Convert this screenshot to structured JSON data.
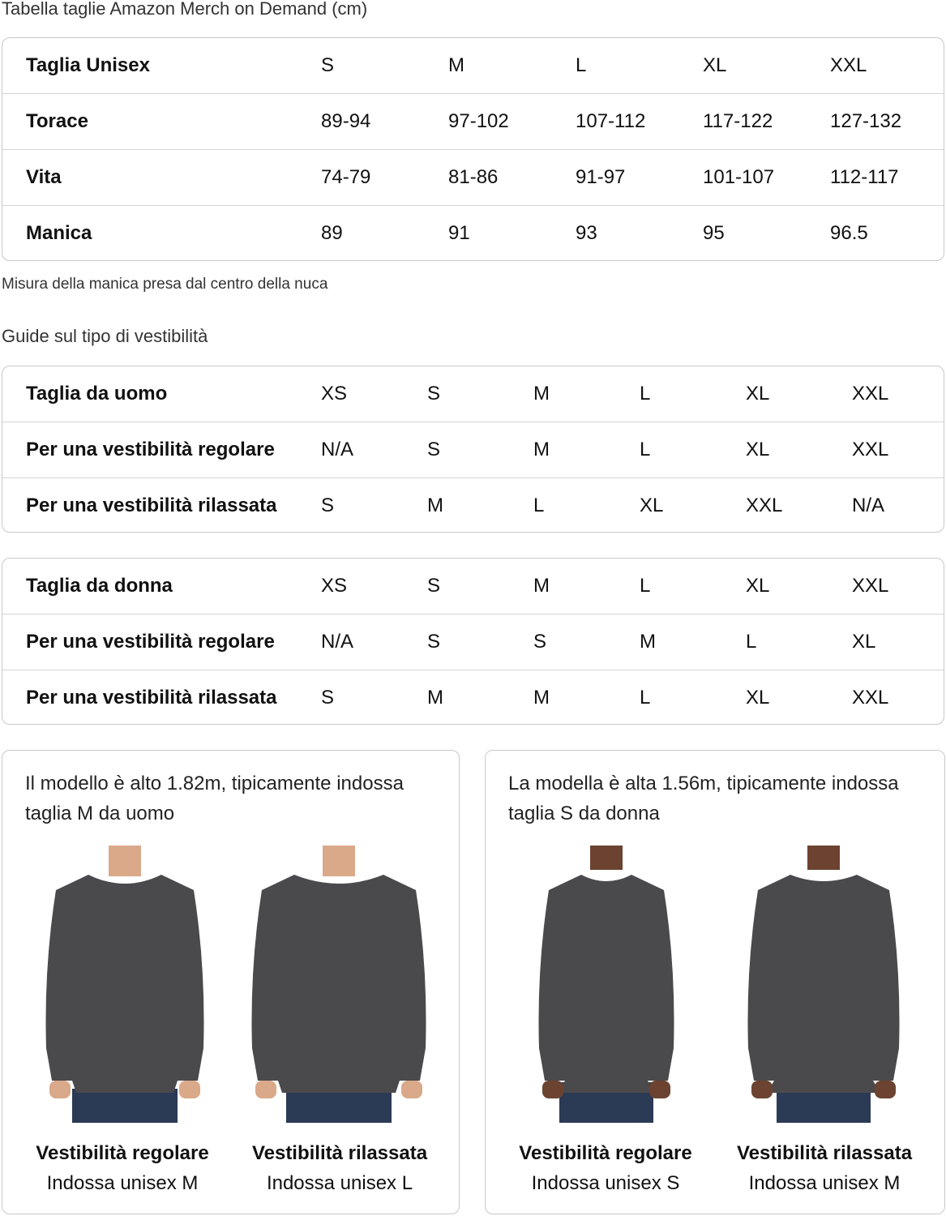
{
  "title": "Tabella taglie Amazon Merch on Demand (cm)",
  "unisex_table": {
    "rows": [
      {
        "label": "Taglia Unisex",
        "values": [
          "S",
          "M",
          "L",
          "XL",
          "XXL"
        ]
      },
      {
        "label": "Torace",
        "values": [
          "89-94",
          "97-102",
          "107-112",
          "117-122",
          "127-132"
        ]
      },
      {
        "label": "Vita",
        "values": [
          "74-79",
          "81-86",
          "91-97",
          "101-107",
          "112-117"
        ]
      },
      {
        "label": "Manica",
        "values": [
          "89",
          "91",
          "93",
          "95",
          "96.5"
        ]
      }
    ]
  },
  "note": "Misura della manica presa dal centro della nuca",
  "guide_title": "Guide sul tipo di vestibilità",
  "men_table": {
    "rows": [
      {
        "label": "Taglia da uomo",
        "values": [
          "XS",
          "S",
          "M",
          "L",
          "XL",
          "XXL"
        ]
      },
      {
        "label": "Per una vestibilità regolare",
        "values": [
          "N/A",
          "S",
          "M",
          "L",
          "XL",
          "XXL"
        ]
      },
      {
        "label": "Per una vestibilità rilassata",
        "values": [
          "S",
          "M",
          "L",
          "XL",
          "XXL",
          "N/A"
        ]
      }
    ]
  },
  "women_table": {
    "rows": [
      {
        "label": "Taglia da donna",
        "values": [
          "XS",
          "S",
          "M",
          "L",
          "XL",
          "XXL"
        ]
      },
      {
        "label": "Per una vestibilità regolare",
        "values": [
          "N/A",
          "S",
          "S",
          "M",
          "L",
          "XL"
        ]
      },
      {
        "label": "Per una vestibilità rilassata",
        "values": [
          "S",
          "M",
          "M",
          "L",
          "XL",
          "XXL"
        ]
      }
    ]
  },
  "cards": [
    {
      "text": "Il modello è alto 1.82m, tipicamente indossa taglia M da uomo",
      "photos": [
        {
          "fit": "Vestibilità regolare",
          "wears": "Indossa unisex M"
        },
        {
          "fit": "Vestibilità rilassata",
          "wears": "Indossa unisex L"
        }
      ]
    },
    {
      "text": "La modella è alta 1.56m, tipicamente indossa taglia S da donna",
      "photos": [
        {
          "fit": "Vestibilità regolare",
          "wears": "Indossa unisex S"
        },
        {
          "fit": "Vestibilità rilassata",
          "wears": "Indossa unisex M"
        }
      ]
    }
  ],
  "colors": {
    "border": "#c8c8c8",
    "sweatshirt": "#4a4a4c",
    "jeans": "#2b3a55"
  }
}
